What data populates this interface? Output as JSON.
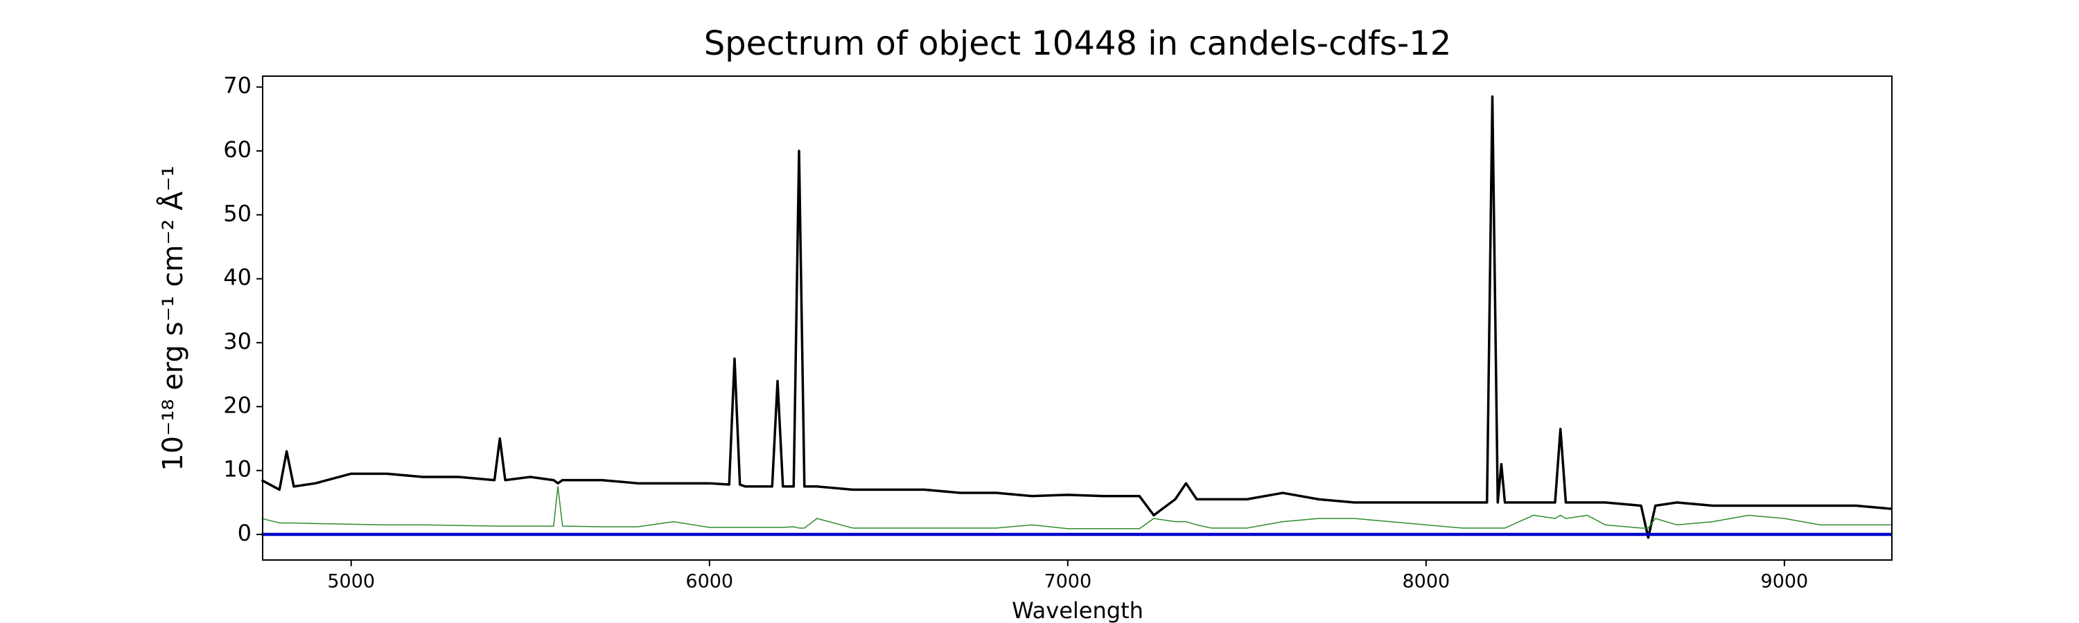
{
  "chart_data": {
    "type": "line",
    "title": "Spectrum of object 10448 in candels-cdfs-12",
    "x_label": "Wavelength",
    "y_label": "10⁻¹⁸ erg s⁻¹ cm⁻² Å⁻¹",
    "x": [
      4750,
      4800,
      4820,
      4840,
      4900,
      5000,
      5100,
      5200,
      5300,
      5400,
      5415,
      5430,
      5500,
      5565,
      5577,
      5590,
      5700,
      5800,
      5900,
      6000,
      6055,
      6070,
      6085,
      6100,
      6175,
      6190,
      6205,
      6235,
      6250,
      6265,
      6300,
      6400,
      6500,
      6600,
      6700,
      6800,
      6900,
      7000,
      7100,
      7200,
      7240,
      7300,
      7330,
      7360,
      7400,
      7500,
      7600,
      7700,
      7800,
      7900,
      8000,
      8100,
      8170,
      8185,
      8200,
      8210,
      8220,
      8300,
      8360,
      8375,
      8390,
      8450,
      8500,
      8600,
      8620,
      8640,
      8700,
      8800,
      8900,
      9000,
      9100,
      9200,
      9300
    ],
    "series": [
      {
        "color": "#000000",
        "values": [
          8.5,
          7,
          13,
          7.5,
          8,
          9.5,
          9.5,
          9,
          9,
          8.5,
          15,
          8.5,
          9,
          8.5,
          8,
          8.5,
          8.5,
          8,
          8,
          8,
          7.8,
          27.5,
          7.8,
          7.5,
          7.5,
          24,
          7.5,
          7.5,
          60,
          7.5,
          7.5,
          7,
          7,
          7,
          6.5,
          6.5,
          6,
          6.2,
          6,
          6,
          3,
          5.5,
          8,
          5.5,
          5.5,
          5.5,
          6.5,
          5.5,
          5,
          5,
          5,
          5,
          5,
          68.5,
          5,
          11,
          5,
          5,
          5,
          16.5,
          5,
          5,
          5,
          4.5,
          -0.5,
          4.5,
          5,
          4.5,
          4.5,
          4.5,
          4.5,
          4.5,
          4
        ]
      },
      {
        "color": "#2e8b2e",
        "values": [
          2.5,
          1.8,
          1.8,
          1.8,
          1.7,
          1.6,
          1.5,
          1.5,
          1.4,
          1.3,
          1.3,
          1.3,
          1.3,
          1.3,
          7.5,
          1.3,
          1.2,
          1.2,
          2,
          1.1,
          1.1,
          1.1,
          1.1,
          1.1,
          1.1,
          1.1,
          1.1,
          1.2,
          1,
          1,
          2.5,
          1,
          1,
          1,
          1,
          1,
          1.5,
          0.9,
          0.9,
          0.9,
          2.5,
          2,
          2,
          1.5,
          1,
          1,
          2,
          2.5,
          2.5,
          2,
          1.5,
          1,
          1,
          1,
          1,
          1,
          1,
          3,
          2.5,
          3,
          2.5,
          3,
          1.5,
          1,
          1,
          2.5,
          1.5,
          2,
          3,
          2.5,
          1.5,
          1.5,
          1.5
        ]
      },
      {
        "color": "#0000cc",
        "values": [
          0,
          0,
          0,
          0,
          0,
          0,
          0,
          0,
          0,
          0,
          0,
          0,
          0,
          0,
          0,
          0,
          0,
          0,
          0,
          0,
          0,
          0,
          0,
          0,
          0,
          0,
          0,
          0,
          0,
          0,
          0,
          0,
          0,
          0,
          0,
          0,
          0,
          0,
          0,
          0,
          0,
          0,
          0,
          0,
          0,
          0,
          0,
          0,
          0,
          0,
          0,
          0,
          0,
          0,
          0,
          0,
          0,
          0,
          0,
          0,
          0,
          0,
          0,
          0,
          0,
          0,
          0,
          0,
          0,
          0,
          0,
          0,
          0
        ]
      }
    ],
    "xlim": [
      4753,
      9300
    ],
    "ylim": [
      -4,
      71.7
    ],
    "xticks": [
      5000,
      6000,
      7000,
      8000,
      9000
    ],
    "yticks": [
      0,
      10,
      20,
      30,
      40,
      50,
      60,
      70
    ]
  }
}
